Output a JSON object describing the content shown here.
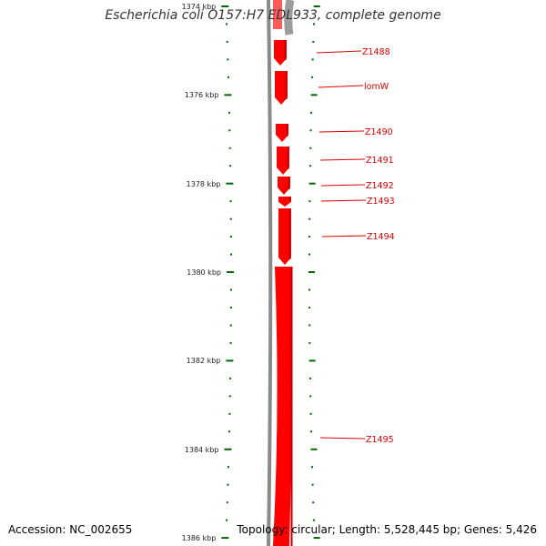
{
  "title": "Escherichia coli O157:H7 EDL933, complete genome",
  "accession": "Accession: NC_002655",
  "topology": "Topology: circular; Length: 5,528,445 bp; Genes: 5,426",
  "colors": {
    "gene": "#ff0000",
    "gene_dark": "#c00000",
    "backbone": "#8a8a8a",
    "tick": "#006600",
    "label": "#dd0000"
  },
  "kbp_labels": [
    "1374 kbp",
    "1376 kbp",
    "1378 kbp",
    "1380 kbp",
    "1382 kbp",
    "1384 kbp",
    "1386 kbp"
  ],
  "genes": [
    {
      "name": "Z1488"
    },
    {
      "name": "lomW"
    },
    {
      "name": "Z1490"
    },
    {
      "name": "Z1491"
    },
    {
      "name": "Z1492"
    },
    {
      "name": "Z1493"
    },
    {
      "name": "Z1494"
    },
    {
      "name": "Z1495"
    }
  ]
}
